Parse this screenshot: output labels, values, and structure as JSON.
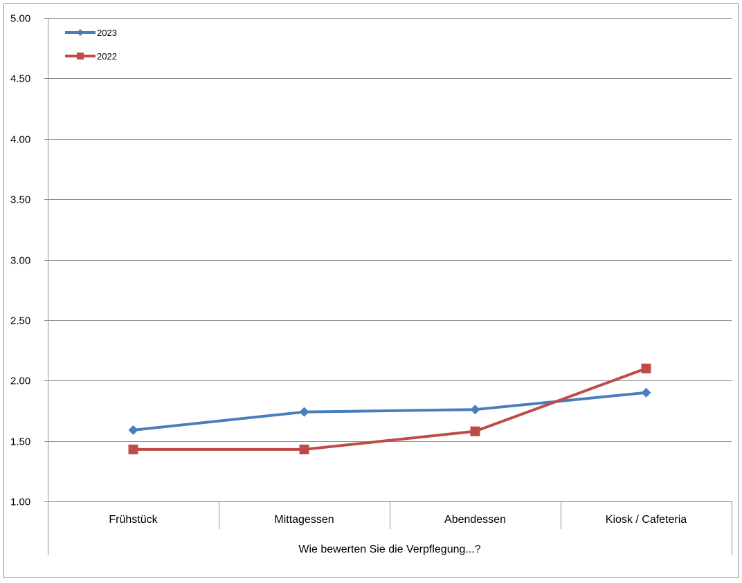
{
  "chart_data": {
    "type": "line",
    "categories": [
      "Frühstück",
      "Mittagessen",
      "Abendessen",
      "Kiosk / Cafeteria"
    ],
    "xlabel": "Wie bewerten Sie die Verpflegung...?",
    "ylabel": "",
    "ylim": [
      1.0,
      5.0
    ],
    "yticks": [
      "1.00",
      "1.50",
      "2.00",
      "2.50",
      "3.00",
      "3.50",
      "4.00",
      "4.50",
      "5.00"
    ],
    "grid": "horizontal",
    "legend_position": "top-left",
    "series": [
      {
        "name": "2023",
        "values": [
          1.59,
          1.74,
          1.76,
          1.9
        ],
        "color": "#4a7ebb",
        "marker": "diamond"
      },
      {
        "name": "2022",
        "values": [
          1.43,
          1.43,
          1.58,
          2.1
        ],
        "color": "#be4b48",
        "marker": "square"
      }
    ]
  }
}
